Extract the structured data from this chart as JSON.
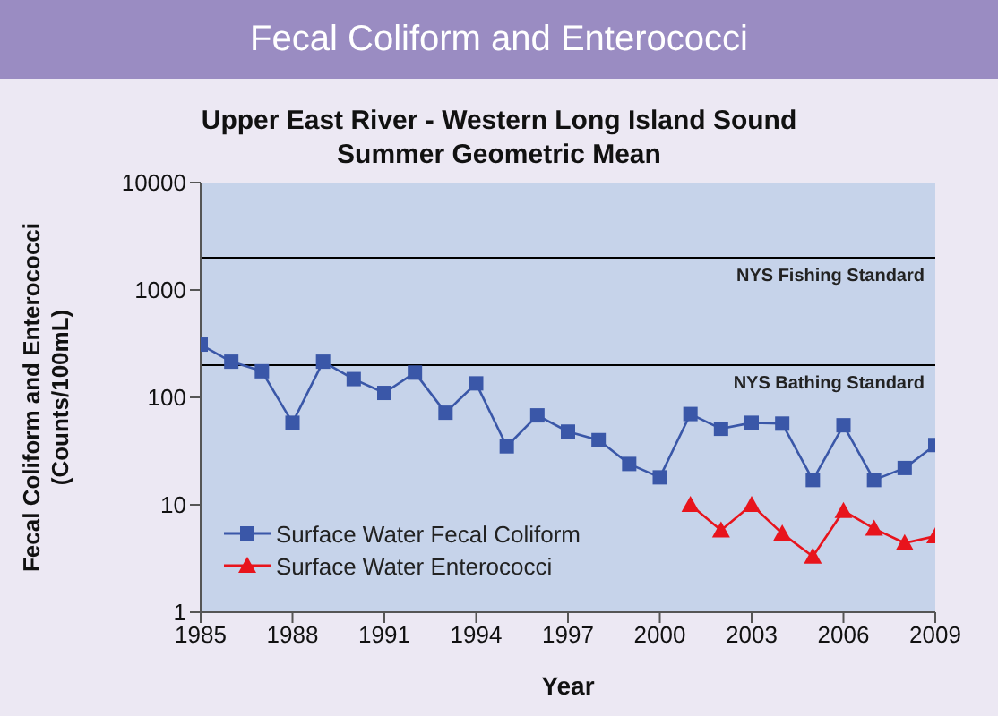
{
  "chart_data": {
    "type": "line",
    "title": "Fecal Coliform and Enterococci",
    "subtitle": "Upper East River - Western Long Island Sound\nSummer Geometric Mean",
    "xlabel": "Year",
    "ylabel": "Fecal Coliform and Enterococci\n(Counts/100mL)",
    "x": [
      1985,
      1986,
      1987,
      1988,
      1989,
      1990,
      1991,
      1992,
      1993,
      1994,
      1995,
      1996,
      1997,
      1998,
      1999,
      2000,
      2001,
      2002,
      2003,
      2004,
      2005,
      2006,
      2007,
      2008,
      2009
    ],
    "series": [
      {
        "name": "Surface Water Fecal Coliform",
        "color": "#3a57a8",
        "marker": "square",
        "values": [
          310,
          215,
          175,
          58,
          215,
          148,
          110,
          170,
          72,
          135,
          35,
          68,
          48,
          40,
          24,
          18,
          70,
          51,
          58,
          57,
          17,
          55,
          17,
          22,
          36
        ]
      },
      {
        "name": "Surface Water Enterococci",
        "color": "#e8141c",
        "marker": "triangle",
        "values": [
          null,
          null,
          null,
          null,
          null,
          null,
          null,
          null,
          null,
          null,
          null,
          null,
          null,
          null,
          null,
          null,
          10,
          5.8,
          10,
          5.4,
          3.3,
          8.8,
          6,
          4.4,
          5.1
        ]
      }
    ],
    "log": "y",
    "xlim": [
      1985,
      2009
    ],
    "xticks": [
      1985,
      1988,
      1991,
      1994,
      1997,
      2000,
      2003,
      2006,
      2009
    ],
    "ylim": [
      1,
      10000
    ],
    "yticks": [
      1,
      10,
      100,
      1000,
      10000
    ],
    "ref_lines": [
      {
        "axis": "y",
        "value": 2000,
        "label": "NYS Fishing Standard",
        "color": "#000000"
      },
      {
        "axis": "y",
        "value": 200,
        "label": "NYS Bathing Standard",
        "color": "#000000"
      }
    ],
    "grid": false,
    "legend": "bottom left"
  }
}
